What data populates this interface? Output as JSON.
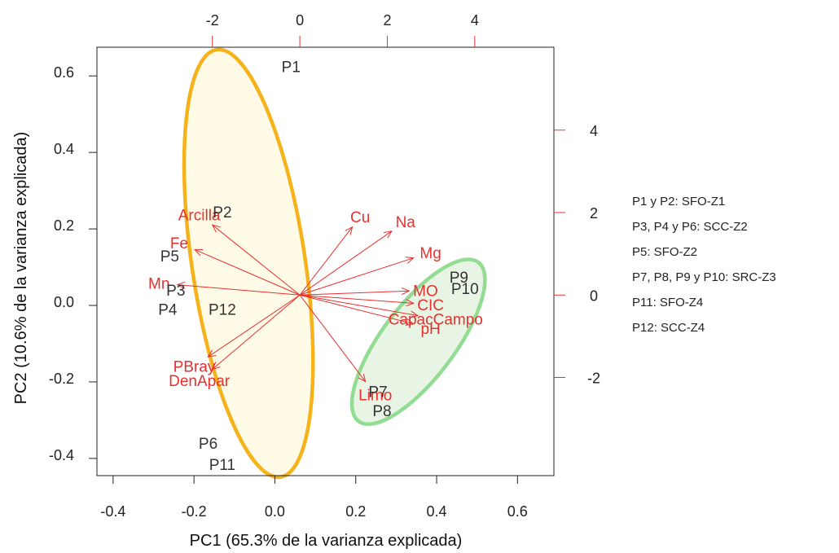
{
  "chart_data": {
    "type": "scatter",
    "subtype": "pca-biplot",
    "xlabel": "PC1 (65.3% de la varianza explicada)",
    "ylabel": "PC2 (10.6% de la varianza explicada)",
    "xlim": [
      -0.44,
      0.69
    ],
    "ylim": [
      -0.445,
      0.675
    ],
    "xticks": [
      -0.4,
      -0.2,
      0.0,
      0.2,
      0.4,
      0.6
    ],
    "yticks": [
      -0.4,
      -0.2,
      0.0,
      0.2,
      0.4,
      0.6
    ],
    "xtick_labels": [
      "-0.4",
      "-0.2",
      "0.0",
      "0.2",
      "0.4",
      "0.6"
    ],
    "ytick_labels": [
      "-0.4",
      "-0.2",
      "0.0",
      "0.2",
      "0.4",
      "0.6"
    ],
    "top_axis": {
      "lim": [
        -4.64,
        5.81
      ],
      "ticks": [
        -2,
        0,
        2,
        4
      ],
      "tick_labels": [
        "-2",
        "0",
        "2",
        "4"
      ],
      "color": "#e8302f"
    },
    "right_axis": {
      "lim": [
        -4.38,
        6.01
      ],
      "ticks": [
        -2,
        0,
        2,
        4
      ],
      "tick_labels": [
        "-2",
        "0",
        "2",
        "4"
      ],
      "color": "#e8302f"
    },
    "grid": false,
    "legend_position": "right",
    "colors": {
      "points": "#333333",
      "loadings": "#e8302f",
      "ellipse1": "#f6b21a",
      "ellipse2": "#93dc93"
    },
    "points": [
      {
        "label": "P1",
        "x": 0.04,
        "y": 0.625
      },
      {
        "label": "P2",
        "x": -0.13,
        "y": 0.245
      },
      {
        "label": "P3",
        "x": -0.245,
        "y": 0.04
      },
      {
        "label": "P4",
        "x": -0.265,
        "y": -0.01
      },
      {
        "label": "P5",
        "x": -0.26,
        "y": 0.13
      },
      {
        "label": "P6",
        "x": -0.165,
        "y": -0.36
      },
      {
        "label": "P7",
        "x": 0.255,
        "y": -0.225
      },
      {
        "label": "P8",
        "x": 0.265,
        "y": -0.275
      },
      {
        "label": "P9",
        "x": 0.455,
        "y": 0.075
      },
      {
        "label": "P10",
        "x": 0.47,
        "y": 0.045
      },
      {
        "label": "P11",
        "x": -0.13,
        "y": -0.415
      },
      {
        "label": "P12",
        "x": -0.13,
        "y": -0.01
      }
    ],
    "loadings": [
      {
        "label": "Arcilla",
        "x": -2.0,
        "y": 1.7
      },
      {
        "label": "Fe",
        "x": -2.4,
        "y": 1.1
      },
      {
        "label": "Mn",
        "x": -2.8,
        "y": 0.25
      },
      {
        "label": "Cu",
        "x": 1.2,
        "y": 1.65
      },
      {
        "label": "Na",
        "x": 2.1,
        "y": 1.55
      },
      {
        "label": "Mg",
        "x": 2.6,
        "y": 0.9
      },
      {
        "label": "MO",
        "x": 2.5,
        "y": 0.1
      },
      {
        "label": "CIC",
        "x": 2.6,
        "y": -0.2
      },
      {
        "label": "CapacCampo",
        "x": 2.7,
        "y": -0.5
      },
      {
        "label": "pH",
        "x": 2.6,
        "y": -0.7
      },
      {
        "label": "PBray",
        "x": -2.1,
        "y": -1.5
      },
      {
        "label": "DenApar",
        "x": -2.0,
        "y": -1.8
      },
      {
        "label": "Limo",
        "x": 1.5,
        "y": -2.1
      }
    ],
    "ellipses": [
      {
        "cx": -0.065,
        "cy": 0.11,
        "rx": 0.14,
        "ry": 0.565,
        "rotation": -8.5,
        "stroke": "#f6b21a",
        "fill": "#fffbe6"
      },
      {
        "cx": 0.355,
        "cy": -0.095,
        "rx": 0.09,
        "ry": 0.26,
        "rotation": 37,
        "stroke": "#93dc93",
        "fill": "#e8f4e4"
      }
    ]
  },
  "legend": {
    "items": [
      "P1 y P2: SFO-Z1",
      "P3, P4 y P6: SCC-Z2",
      "P5: SFO-Z2",
      "P7, P8, P9 y P10: SRC-Z3",
      "P11: SFO-Z4",
      "P12: SCC-Z4"
    ]
  }
}
